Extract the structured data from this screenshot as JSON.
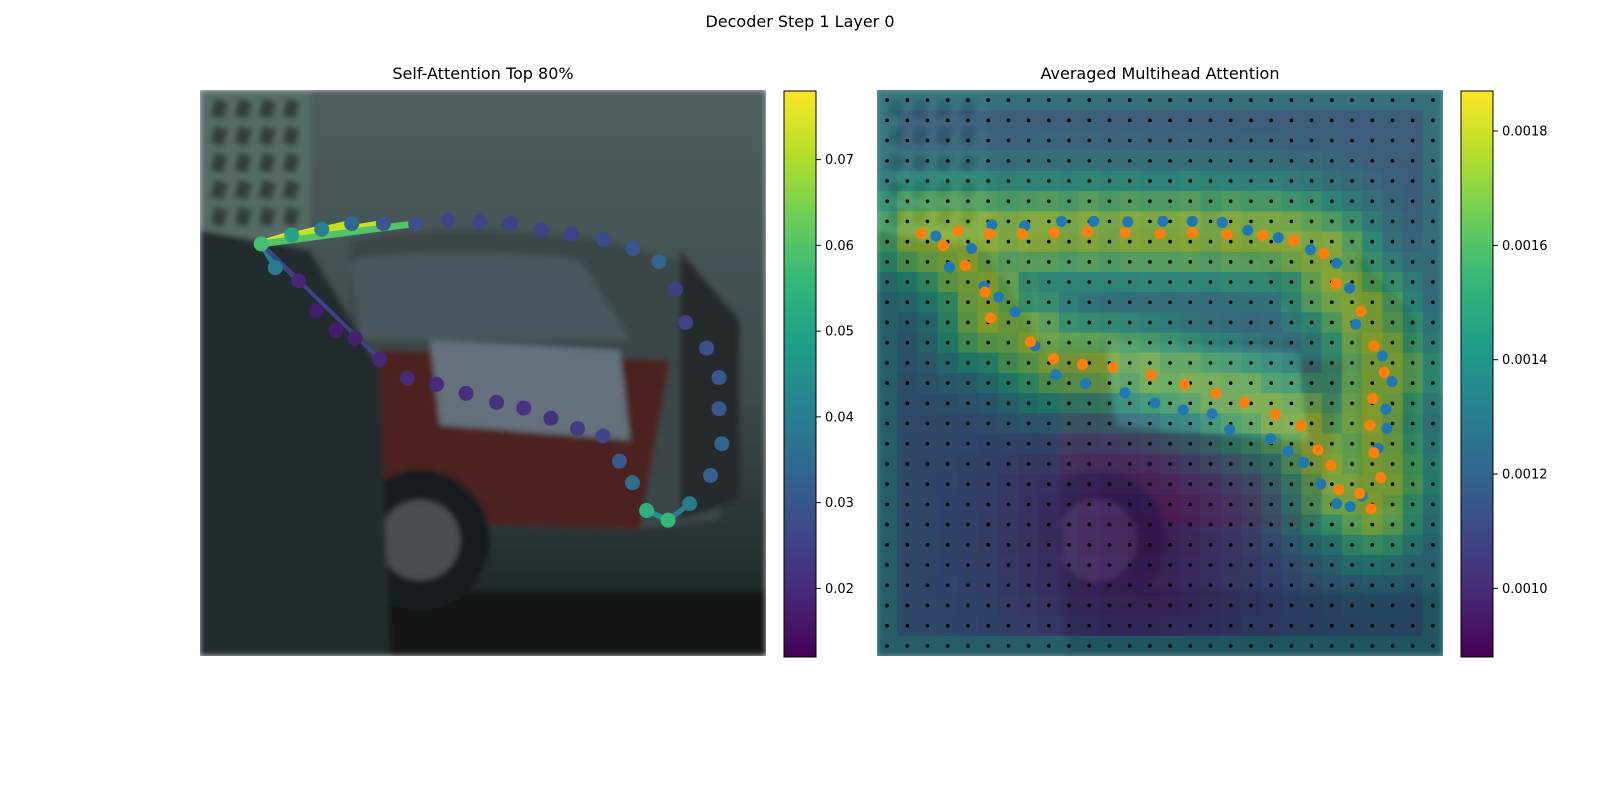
{
  "figure": {
    "title": "Decoder Step 1 Layer 0"
  },
  "colors": {
    "viridis": [
      "#440154",
      "#482878",
      "#3e4989",
      "#31688e",
      "#26828e",
      "#1f9e89",
      "#35b779",
      "#6ece58",
      "#b5de2b",
      "#fde725"
    ],
    "orange_points": "#ff7f0e",
    "blue_points": "#1f77b4",
    "grid_dots": "#000000"
  },
  "chart_data": [
    {
      "type": "scatter",
      "title": "Self-Attention Top 80%",
      "background": "photo of parked cars (blurred)",
      "colorbar": {
        "range": [
          0.012,
          0.078
        ],
        "ticks": [
          "0.02",
          "0.03",
          "0.04",
          "0.05",
          "0.06",
          "0.07"
        ]
      },
      "xlim": [
        0,
        1
      ],
      "ylim": [
        0,
        1
      ],
      "points": [
        {
          "x": 0.108,
          "y": 0.272,
          "v": 0.058
        },
        {
          "x": 0.162,
          "y": 0.256,
          "v": 0.05
        },
        {
          "x": 0.215,
          "y": 0.246,
          "v": 0.041
        },
        {
          "x": 0.268,
          "y": 0.236,
          "v": 0.034
        },
        {
          "x": 0.324,
          "y": 0.236,
          "v": 0.03
        },
        {
          "x": 0.381,
          "y": 0.236,
          "v": 0.028
        },
        {
          "x": 0.438,
          "y": 0.231,
          "v": 0.026
        },
        {
          "x": 0.494,
          "y": 0.233,
          "v": 0.026
        },
        {
          "x": 0.548,
          "y": 0.236,
          "v": 0.025
        },
        {
          "x": 0.603,
          "y": 0.247,
          "v": 0.025
        },
        {
          "x": 0.656,
          "y": 0.254,
          "v": 0.025
        },
        {
          "x": 0.712,
          "y": 0.264,
          "v": 0.027
        },
        {
          "x": 0.765,
          "y": 0.28,
          "v": 0.03
        },
        {
          "x": 0.811,
          "y": 0.303,
          "v": 0.033
        },
        {
          "x": 0.84,
          "y": 0.352,
          "v": 0.024
        },
        {
          "x": 0.858,
          "y": 0.411,
          "v": 0.025
        },
        {
          "x": 0.895,
          "y": 0.456,
          "v": 0.028
        },
        {
          "x": 0.917,
          "y": 0.508,
          "v": 0.03
        },
        {
          "x": 0.917,
          "y": 0.563,
          "v": 0.03
        },
        {
          "x": 0.922,
          "y": 0.625,
          "v": 0.033
        },
        {
          "x": 0.902,
          "y": 0.681,
          "v": 0.032
        },
        {
          "x": 0.865,
          "y": 0.731,
          "v": 0.039
        },
        {
          "x": 0.827,
          "y": 0.76,
          "v": 0.056
        },
        {
          "x": 0.789,
          "y": 0.743,
          "v": 0.054
        },
        {
          "x": 0.764,
          "y": 0.694,
          "v": 0.036
        },
        {
          "x": 0.741,
          "y": 0.656,
          "v": 0.031
        },
        {
          "x": 0.712,
          "y": 0.611,
          "v": 0.026
        },
        {
          "x": 0.667,
          "y": 0.598,
          "v": 0.024
        },
        {
          "x": 0.62,
          "y": 0.58,
          "v": 0.022
        },
        {
          "x": 0.572,
          "y": 0.562,
          "v": 0.022
        },
        {
          "x": 0.524,
          "y": 0.552,
          "v": 0.022
        },
        {
          "x": 0.47,
          "y": 0.536,
          "v": 0.021
        },
        {
          "x": 0.418,
          "y": 0.52,
          "v": 0.02
        },
        {
          "x": 0.366,
          "y": 0.509,
          "v": 0.02
        },
        {
          "x": 0.318,
          "y": 0.476,
          "v": 0.019
        },
        {
          "x": 0.274,
          "y": 0.439,
          "v": 0.018
        },
        {
          "x": 0.24,
          "y": 0.425,
          "v": 0.017
        },
        {
          "x": 0.206,
          "y": 0.39,
          "v": 0.017
        },
        {
          "x": 0.174,
          "y": 0.337,
          "v": 0.019
        },
        {
          "x": 0.133,
          "y": 0.314,
          "v": 0.039
        }
      ],
      "lines": [
        {
          "from": 0,
          "to": 1,
          "v": 0.076
        },
        {
          "from": 0,
          "to": 2,
          "v": 0.078
        },
        {
          "from": 0,
          "to": 3,
          "v": 0.072
        },
        {
          "from": 0,
          "to": 4,
          "v": 0.072
        },
        {
          "from": 0,
          "to": 5,
          "v": 0.06
        },
        {
          "from": 0,
          "to": 39,
          "v": 0.04
        },
        {
          "from": 0,
          "to": 38,
          "v": 0.035
        },
        {
          "from": 22,
          "to": 21,
          "v": 0.04
        },
        {
          "from": 22,
          "to": 23,
          "v": 0.045
        },
        {
          "from": 0,
          "to": 34,
          "v": 0.025
        }
      ]
    },
    {
      "type": "heatmap",
      "title": "Averaged Multihead Attention",
      "background": "same photo with attention heatmap overlay",
      "colorbar": {
        "range": [
          0.00088,
          0.00187
        ],
        "ticks": [
          "0.0010",
          "0.0012",
          "0.0014",
          "0.0016",
          "0.0018"
        ]
      },
      "grid": {
        "rows": 28,
        "cols": 28
      },
      "series": [
        {
          "color": "orange",
          "points": [
            {
              "x": 0.078,
              "y": 0.253
            },
            {
              "x": 0.117,
              "y": 0.275
            },
            {
              "x": 0.143,
              "y": 0.249
            },
            {
              "x": 0.156,
              "y": 0.31
            },
            {
              "x": 0.191,
              "y": 0.357
            },
            {
              "x": 0.201,
              "y": 0.403
            },
            {
              "x": 0.271,
              "y": 0.445
            },
            {
              "x": 0.312,
              "y": 0.475
            },
            {
              "x": 0.363,
              "y": 0.485
            },
            {
              "x": 0.417,
              "y": 0.49
            },
            {
              "x": 0.484,
              "y": 0.503
            },
            {
              "x": 0.543,
              "y": 0.52
            },
            {
              "x": 0.599,
              "y": 0.536
            },
            {
              "x": 0.649,
              "y": 0.552
            },
            {
              "x": 0.704,
              "y": 0.573
            },
            {
              "x": 0.749,
              "y": 0.593
            },
            {
              "x": 0.779,
              "y": 0.636
            },
            {
              "x": 0.802,
              "y": 0.663
            },
            {
              "x": 0.816,
              "y": 0.706
            },
            {
              "x": 0.853,
              "y": 0.713
            },
            {
              "x": 0.873,
              "y": 0.74
            },
            {
              "x": 0.89,
              "y": 0.685
            },
            {
              "x": 0.878,
              "y": 0.641
            },
            {
              "x": 0.871,
              "y": 0.592
            },
            {
              "x": 0.876,
              "y": 0.545
            },
            {
              "x": 0.896,
              "y": 0.499
            },
            {
              "x": 0.878,
              "y": 0.452
            },
            {
              "x": 0.855,
              "y": 0.391
            },
            {
              "x": 0.811,
              "y": 0.342
            },
            {
              "x": 0.789,
              "y": 0.289
            },
            {
              "x": 0.736,
              "y": 0.266
            },
            {
              "x": 0.681,
              "y": 0.257
            },
            {
              "x": 0.619,
              "y": 0.255
            },
            {
              "x": 0.557,
              "y": 0.252
            },
            {
              "x": 0.5,
              "y": 0.254
            },
            {
              "x": 0.438,
              "y": 0.252
            },
            {
              "x": 0.372,
              "y": 0.25
            },
            {
              "x": 0.313,
              "y": 0.252
            },
            {
              "x": 0.256,
              "y": 0.254
            },
            {
              "x": 0.199,
              "y": 0.254
            }
          ]
        },
        {
          "color": "blue",
          "points": [
            {
              "x": 0.104,
              "y": 0.258
            },
            {
              "x": 0.128,
              "y": 0.313
            },
            {
              "x": 0.167,
              "y": 0.28
            },
            {
              "x": 0.189,
              "y": 0.347
            },
            {
              "x": 0.215,
              "y": 0.366
            },
            {
              "x": 0.244,
              "y": 0.392
            },
            {
              "x": 0.279,
              "y": 0.452
            },
            {
              "x": 0.316,
              "y": 0.503
            },
            {
              "x": 0.368,
              "y": 0.519
            },
            {
              "x": 0.438,
              "y": 0.535
            },
            {
              "x": 0.491,
              "y": 0.553
            },
            {
              "x": 0.541,
              "y": 0.565
            },
            {
              "x": 0.592,
              "y": 0.572
            },
            {
              "x": 0.623,
              "y": 0.6
            },
            {
              "x": 0.695,
              "y": 0.616
            },
            {
              "x": 0.726,
              "y": 0.638
            },
            {
              "x": 0.754,
              "y": 0.658
            },
            {
              "x": 0.784,
              "y": 0.696
            },
            {
              "x": 0.812,
              "y": 0.731
            },
            {
              "x": 0.836,
              "y": 0.736
            },
            {
              "x": 0.857,
              "y": 0.717
            },
            {
              "x": 0.885,
              "y": 0.633
            },
            {
              "x": 0.901,
              "y": 0.598
            },
            {
              "x": 0.899,
              "y": 0.564
            },
            {
              "x": 0.91,
              "y": 0.515
            },
            {
              "x": 0.893,
              "y": 0.47
            },
            {
              "x": 0.846,
              "y": 0.414
            },
            {
              "x": 0.835,
              "y": 0.35
            },
            {
              "x": 0.812,
              "y": 0.306
            },
            {
              "x": 0.766,
              "y": 0.282
            },
            {
              "x": 0.709,
              "y": 0.261
            },
            {
              "x": 0.655,
              "y": 0.248
            },
            {
              "x": 0.61,
              "y": 0.234
            },
            {
              "x": 0.557,
              "y": 0.232
            },
            {
              "x": 0.505,
              "y": 0.232
            },
            {
              "x": 0.443,
              "y": 0.233
            },
            {
              "x": 0.383,
              "y": 0.232
            },
            {
              "x": 0.326,
              "y": 0.232
            },
            {
              "x": 0.261,
              "y": 0.24
            },
            {
              "x": 0.203,
              "y": 0.238
            }
          ]
        }
      ]
    }
  ]
}
